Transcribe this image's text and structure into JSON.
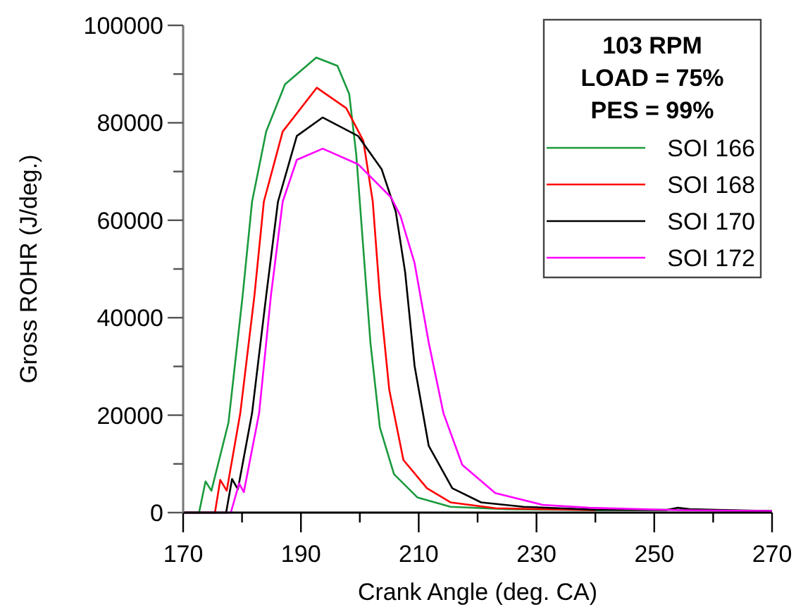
{
  "chart_data": {
    "type": "line",
    "xlabel": "Crank Angle (deg. CA)",
    "ylabel": "Gross ROHR (J/deg.)",
    "legend_title": "103 RPM\nLOAD = 75%\nPES = 99%",
    "legend": "top right",
    "grid": false,
    "marker": "none",
    "line_style": "solid",
    "xlim": [
      170,
      270
    ],
    "xticks": [
      170,
      {
        "value": 180,
        "label": null
      },
      190,
      {
        "value": 200,
        "label": null
      },
      210,
      {
        "value": 220,
        "label": null
      },
      230,
      {
        "value": 240,
        "label": null
      },
      250,
      {
        "value": 260,
        "label": null
      },
      270
    ],
    "ylim": [
      0,
      100000
    ],
    "yticks": [
      0,
      {
        "value": 10000,
        "label": null
      },
      20000,
      {
        "value": 30000,
        "label": null
      },
      40000,
      {
        "value": 50000,
        "label": null
      },
      60000,
      {
        "value": 70000,
        "label": null
      },
      80000,
      {
        "value": 90000,
        "label": null
      },
      100000
    ],
    "series": [
      {
        "name": "SOI 166",
        "color": "#1a9a3c",
        "x": [
          170,
          172.7,
          173.8,
          174.8,
          177.7,
          180.1,
          181.7,
          184.1,
          187.3,
          192.6,
          196.2,
          198.2,
          199.4,
          200.6,
          201.8,
          203.4,
          205.8,
          209.8,
          215.4,
          225,
          240,
          254,
          270
        ],
        "values": [
          0,
          0,
          6400,
          4500,
          18500,
          44500,
          63800,
          78200,
          87900,
          93400,
          91700,
          85900,
          73400,
          54100,
          34900,
          17500,
          7900,
          3100,
          1200,
          700,
          500,
          600,
          300
        ]
      },
      {
        "name": "SOI 168",
        "color": "#ff0000",
        "x": [
          170,
          175.4,
          176.3,
          177.4,
          179.7,
          182.1,
          183.7,
          186.9,
          192.7,
          197.7,
          200.6,
          202.2,
          203.4,
          205,
          207.4,
          211.4,
          215.4,
          223,
          240
        ],
        "values": [
          0,
          0,
          6700,
          4500,
          20400,
          44500,
          63800,
          78200,
          87200,
          83000,
          76300,
          63800,
          44500,
          25200,
          10800,
          5000,
          2100,
          900,
          500
        ]
      },
      {
        "name": "SOI 170",
        "color": "#000000",
        "x": [
          170,
          177.3,
          178.3,
          179.3,
          181.7,
          184.1,
          186.1,
          189.3,
          193.7,
          199.7,
          203.7,
          206.1,
          207.7,
          209.3,
          211.7,
          215.7,
          220.6,
          227.8,
          240,
          252,
          254,
          256,
          270
        ],
        "values": [
          0,
          0,
          6900,
          4800,
          20400,
          44500,
          63800,
          77300,
          81100,
          77300,
          70500,
          61800,
          49300,
          30100,
          13700,
          5000,
          2100,
          1200,
          600,
          500,
          1000,
          700,
          300
        ]
      },
      {
        "name": "SOI 172",
        "color": "#ff00ff",
        "x": [
          170,
          178.1,
          179.5,
          180.3,
          182.9,
          184.9,
          186.9,
          189.3,
          193.7,
          199.7,
          205.3,
          206.9,
          209.3,
          211.7,
          214.2,
          217.4,
          223,
          231,
          239,
          254,
          270
        ],
        "values": [
          0,
          0,
          6000,
          4200,
          20400,
          44500,
          63800,
          72400,
          74700,
          71500,
          64700,
          60900,
          51200,
          34900,
          20400,
          9800,
          4000,
          1600,
          1000,
          500,
          300
        ]
      }
    ]
  }
}
